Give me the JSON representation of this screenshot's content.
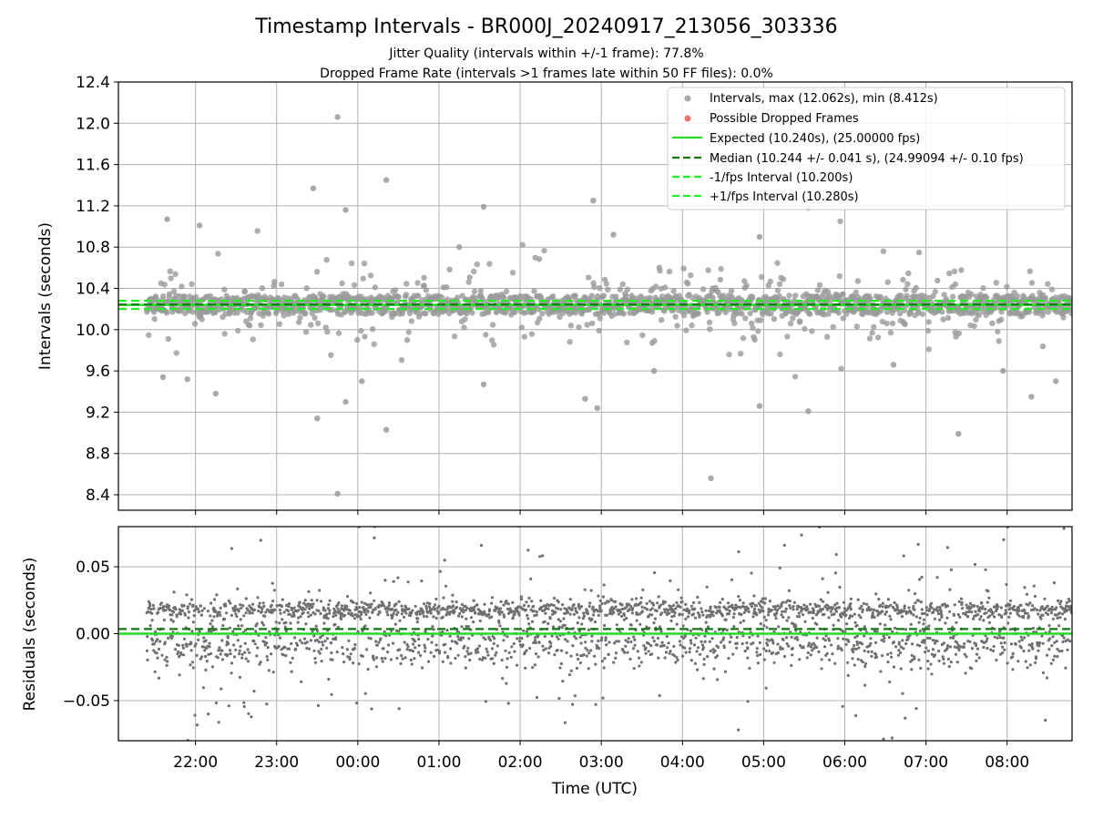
{
  "chart_data": [
    {
      "type": "scatter",
      "title": "Timestamp Intervals - BR000J_20240917_213056_303336",
      "subtitle_lines": [
        "Jitter Quality (intervals within +/-1 frame): 77.8%",
        "Dropped Frame Rate (intervals >1 frames late within 50 FF files): 0.0%"
      ],
      "xlabel": "",
      "ylabel": "Intervals (seconds)",
      "x_axis_unit": "hours since 00:00 UTC",
      "xlim": [
        -2.95,
        8.8
      ],
      "ylim": [
        8.25,
        12.4
      ],
      "y_ticks": [
        8.4,
        8.8,
        9.2,
        9.6,
        10.0,
        10.4,
        10.8,
        11.2,
        11.6,
        12.0,
        12.4
      ],
      "y_tick_labels": [
        "8.4",
        "8.8",
        "9.2",
        "9.6",
        "10.0",
        "10.4",
        "10.8",
        "11.2",
        "11.6",
        "12.0",
        "12.4"
      ],
      "grid": true,
      "legend_position": "top-right",
      "legend": [
        {
          "label": "Intervals, max (12.062s), min (8.412s)",
          "kind": "marker",
          "color": "#9a9a9a"
        },
        {
          "label": "Possible Dropped Frames",
          "kind": "marker",
          "color": "#f07070"
        },
        {
          "label": "Expected (10.240s), (25.00000 fps)",
          "kind": "line",
          "color": "#22dd22",
          "dash": false
        },
        {
          "label": "Median (10.244 +/- 0.041 s), (24.99094 +/- 0.10 fps)",
          "kind": "line",
          "color": "#117711",
          "dash": true
        },
        {
          "label": "-1/fps Interval (10.200s)",
          "kind": "line",
          "color": "#22ee22",
          "dash": true
        },
        {
          "label": "+1/fps Interval (10.280s)",
          "kind": "line",
          "color": "#22ee22",
          "dash": true
        }
      ],
      "reference_lines": {
        "expected": 10.24,
        "median": 10.244,
        "minus_1_fps": 10.2,
        "plus_1_fps": 10.28
      },
      "series": [
        {
          "name": "Intervals",
          "color": "#9a9a9a",
          "generated_count": 1700,
          "core_y_range": [
            10.15,
            10.33
          ],
          "x_range": [
            -2.6,
            8.8
          ],
          "highlighted_points": [
            {
              "x": -0.25,
              "y": 12.06
            },
            {
              "x": -0.55,
              "y": 11.37
            },
            {
              "x": 0.35,
              "y": 11.45
            },
            {
              "x": 2.9,
              "y": 11.25
            },
            {
              "x": 1.55,
              "y": 11.19
            },
            {
              "x": 5.55,
              "y": 11.18
            },
            {
              "x": -0.15,
              "y": 11.16
            },
            {
              "x": 4.95,
              "y": 10.9
            },
            {
              "x": -1.95,
              "y": 11.01
            },
            {
              "x": -2.35,
              "y": 11.07
            },
            {
              "x": 1.25,
              "y": 10.8
            },
            {
              "x": 3.15,
              "y": 10.92
            },
            {
              "x": -0.5,
              "y": 9.14
            },
            {
              "x": -0.15,
              "y": 9.3
            },
            {
              "x": 0.35,
              "y": 9.03
            },
            {
              "x": 2.8,
              "y": 9.33
            },
            {
              "x": 2.95,
              "y": 9.24
            },
            {
              "x": 4.95,
              "y": 9.26
            },
            {
              "x": 5.55,
              "y": 9.21
            },
            {
              "x": 7.4,
              "y": 8.99
            },
            {
              "x": 4.35,
              "y": 8.56
            },
            {
              "x": -0.25,
              "y": 8.41
            },
            {
              "x": 8.3,
              "y": 9.35
            },
            {
              "x": 8.6,
              "y": 9.5
            },
            {
              "x": -1.75,
              "y": 9.38
            },
            {
              "x": -2.4,
              "y": 9.54
            },
            {
              "x": 0.05,
              "y": 9.5
            },
            {
              "x": 3.65,
              "y": 9.6
            },
            {
              "x": 7.95,
              "y": 9.6
            },
            {
              "x": 1.55,
              "y": 9.47
            },
            {
              "x": -2.1,
              "y": 9.52
            },
            {
              "x": 6.6,
              "y": 9.66
            }
          ]
        },
        {
          "name": "Possible Dropped Frames",
          "color": "#f07070",
          "values": []
        }
      ]
    },
    {
      "type": "scatter",
      "xlabel": "Time (UTC)",
      "ylabel": "Residuals (seconds)",
      "x_axis_unit": "hours since 00:00 UTC",
      "xlim": [
        -2.95,
        8.8
      ],
      "ylim": [
        -0.08,
        0.08
      ],
      "y_ticks": [
        -0.05,
        0.0,
        0.05
      ],
      "y_tick_labels": [
        "−0.05",
        "0.00",
        "0.05"
      ],
      "x_ticks": [
        -2,
        -1,
        0,
        1,
        2,
        3,
        4,
        5,
        6,
        7,
        8
      ],
      "x_tick_labels": [
        "22:00",
        "23:00",
        "00:00",
        "01:00",
        "02:00",
        "03:00",
        "04:00",
        "05:00",
        "06:00",
        "07:00",
        "08:00"
      ],
      "grid": true,
      "reference_lines": {
        "zero": 0.0,
        "median_offset": 0.0035
      },
      "series": [
        {
          "name": "Residuals",
          "color": "#707070",
          "generated_count": 2600,
          "core_y_range": [
            -0.03,
            0.03
          ],
          "x_range": [
            -2.6,
            8.8
          ]
        }
      ]
    }
  ]
}
